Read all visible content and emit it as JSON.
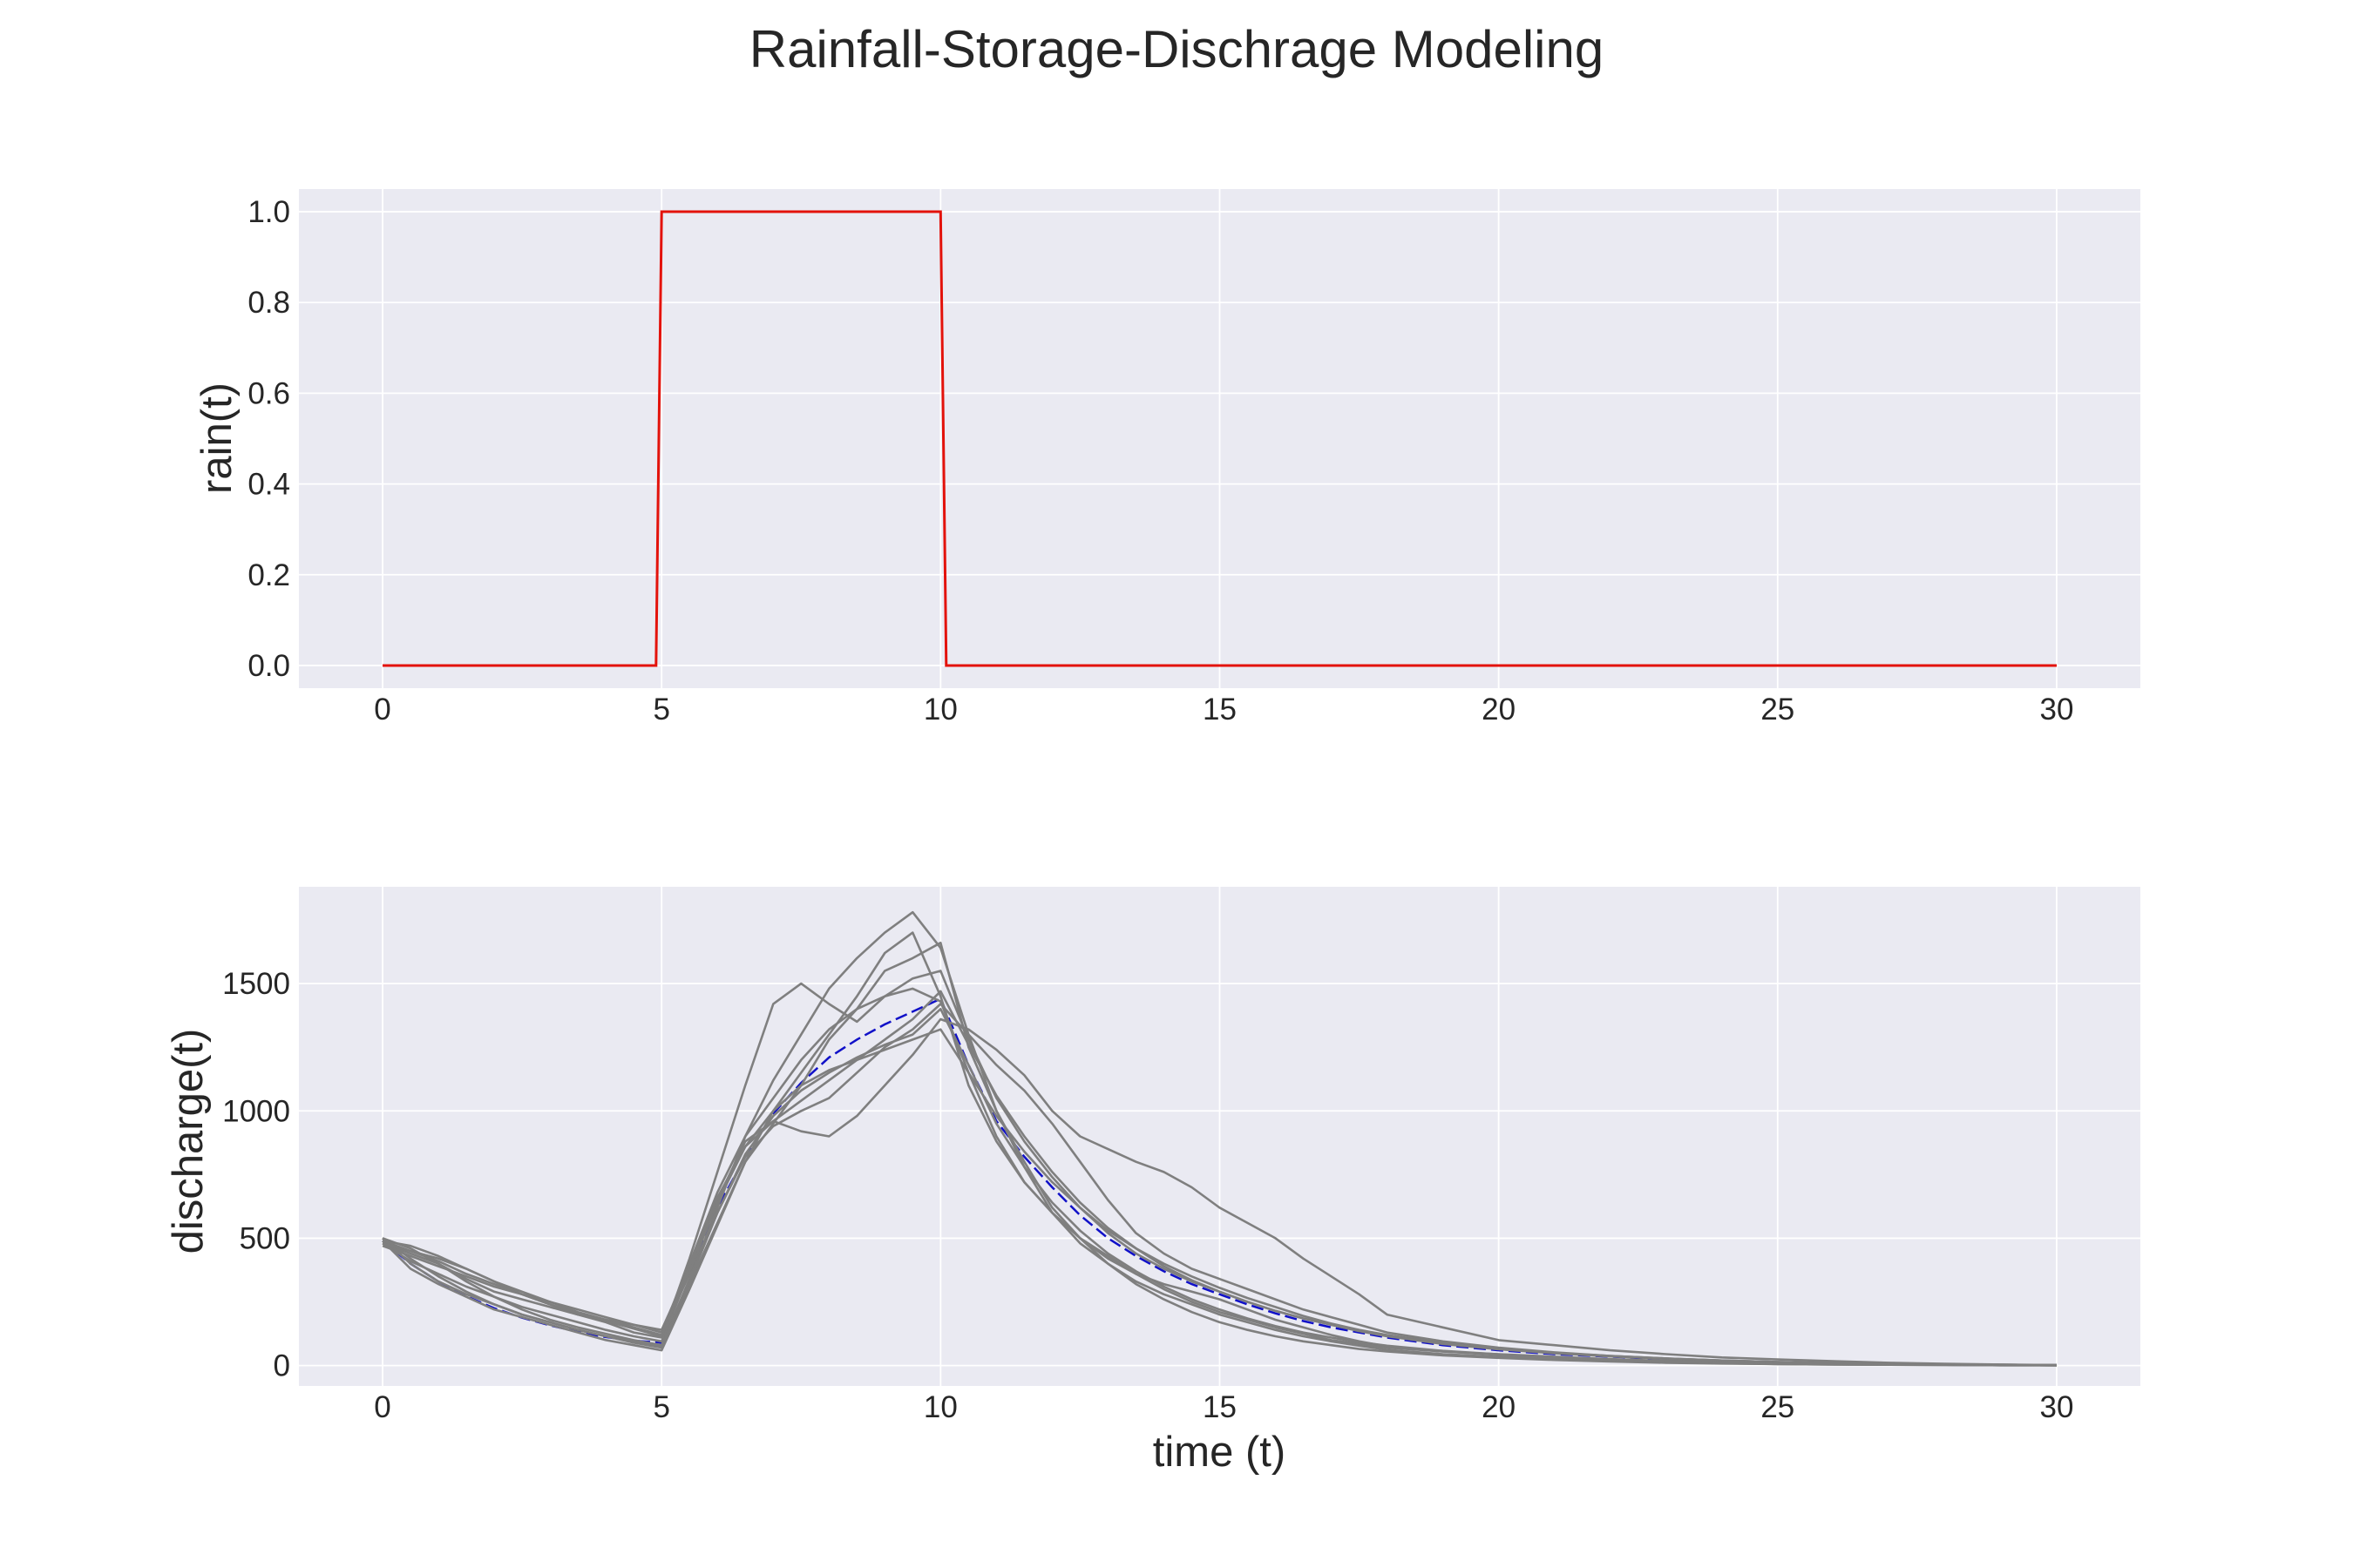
{
  "figure": {
    "title": "Rainfall-Storage-Dischrage Modeling"
  },
  "colors": {
    "background": "#eaeaf2",
    "grid": "#ffffff",
    "rain": "#e3120b",
    "mean_discharge": "#1010c8",
    "realizations": "#7f7f7f",
    "text": "#262626"
  },
  "chart_data": [
    {
      "type": "line",
      "ylabel": "rain(t)",
      "xlabel": "",
      "xlim": [
        -1.5,
        31.5
      ],
      "ylim": [
        -0.05,
        1.05
      ],
      "xticks": [
        0,
        5,
        10,
        15,
        20,
        25,
        30
      ],
      "yticks": [
        "0.0",
        "0.2",
        "0.4",
        "0.6",
        "0.8",
        "1.0"
      ],
      "grid": true,
      "series": [
        {
          "color": "#e3120b",
          "x": [
            0,
            4.9,
            5.0,
            10.0,
            10.1,
            30
          ],
          "y": [
            0,
            0,
            1,
            1,
            0,
            0
          ]
        }
      ]
    },
    {
      "type": "line",
      "ylabel": "discharge(t)",
      "xlabel": "time (t)",
      "xlim": [
        -1.5,
        31.5
      ],
      "ylim": [
        -80,
        1880
      ],
      "xticks": [
        0,
        5,
        10,
        15,
        20,
        25,
        30
      ],
      "yticks": [
        "0",
        "500",
        "1000",
        "1500"
      ],
      "grid": true,
      "mean_series": {
        "color": "#1010c8",
        "dashed": true,
        "x": [
          0,
          0.5,
          1,
          1.5,
          2,
          2.5,
          3,
          3.5,
          4,
          4.5,
          5,
          5.5,
          6,
          6.5,
          7,
          7.5,
          8,
          8.5,
          9,
          9.5,
          10,
          10.5,
          11,
          11.5,
          12,
          12.5,
          13,
          13.5,
          14,
          14.5,
          15,
          15.5,
          16,
          16.5,
          17,
          17.5,
          18,
          19,
          20,
          21,
          22,
          23,
          24,
          25,
          26,
          27,
          28,
          29,
          30
        ],
        "y": [
          490,
          400,
          330,
          272,
          225,
          188,
          158,
          132,
          112,
          98,
          90,
          380,
          620,
          820,
          990,
          1110,
          1210,
          1280,
          1340,
          1390,
          1440,
          1180,
          960,
          820,
          700,
          590,
          500,
          430,
          370,
          320,
          280,
          240,
          205,
          175,
          150,
          130,
          110,
          80,
          60,
          45,
          35,
          25,
          18,
          13,
          9,
          6,
          4,
          3,
          2
        ]
      },
      "realizations": {
        "color": "#7f7f7f",
        "count": 10,
        "x": [
          0,
          0.5,
          1,
          1.5,
          2,
          2.5,
          3,
          3.5,
          4,
          4.5,
          5,
          5.5,
          6,
          6.5,
          7,
          7.5,
          8,
          8.5,
          9,
          9.5,
          10,
          10.5,
          11,
          11.5,
          12,
          12.5,
          13,
          13.5,
          14,
          14.5,
          15,
          15.5,
          16,
          16.5,
          17,
          17.5,
          18,
          19,
          20,
          21,
          22,
          23,
          24,
          25,
          26,
          27,
          28,
          29,
          30
        ],
        "runs": [
          [
            490,
            450,
            420,
            380,
            330,
            280,
            240,
            200,
            170,
            130,
            110,
            420,
            760,
            1100,
            1420,
            1500,
            1420,
            1350,
            1450,
            1480,
            1430,
            1150,
            900,
            720,
            600,
            500,
            430,
            360,
            300,
            250,
            210,
            180,
            150,
            125,
            100,
            85,
            70,
            55,
            45,
            35,
            25,
            18,
            13,
            9,
            6,
            5,
            3,
            2,
            1
          ],
          [
            500,
            420,
            350,
            290,
            240,
            200,
            170,
            140,
            115,
            90,
            70,
            320,
            560,
            800,
            950,
            1100,
            1280,
            1400,
            1550,
            1600,
            1660,
            1250,
            1000,
            800,
            620,
            500,
            400,
            320,
            260,
            210,
            170,
            140,
            115,
            95,
            80,
            65,
            55,
            40,
            30,
            22,
            16,
            11,
            8,
            6,
            4,
            3,
            2,
            1,
            1
          ],
          [
            480,
            440,
            400,
            340,
            290,
            260,
            230,
            200,
            180,
            160,
            140,
            380,
            650,
            880,
            960,
            920,
            900,
            980,
            1100,
            1220,
            1360,
            1320,
            1240,
            1140,
            1000,
            900,
            850,
            800,
            760,
            700,
            620,
            560,
            500,
            420,
            350,
            280,
            200,
            150,
            100,
            80,
            60,
            45,
            32,
            24,
            17,
            11,
            7,
            4,
            2
          ],
          [
            490,
            380,
            320,
            270,
            220,
            190,
            160,
            130,
            100,
            80,
            60,
            300,
            550,
            800,
            1000,
            1150,
            1300,
            1450,
            1620,
            1700,
            1450,
            1100,
            880,
            720,
            600,
            500,
            420,
            360,
            320,
            290,
            260,
            220,
            180,
            150,
            120,
            95,
            75,
            55,
            42,
            32,
            24,
            18,
            13,
            9,
            6,
            4,
            3,
            2,
            1
          ],
          [
            470,
            430,
            390,
            350,
            310,
            280,
            250,
            210,
            180,
            150,
            120,
            360,
            600,
            820,
            940,
            1000,
            1050,
            1150,
            1250,
            1320,
            1420,
            1300,
            1180,
            1080,
            950,
            800,
            650,
            520,
            440,
            380,
            340,
            300,
            260,
            220,
            190,
            160,
            130,
            95,
            70,
            52,
            38,
            28,
            20,
            14,
            10,
            7,
            4,
            3,
            2
          ],
          [
            500,
            460,
            400,
            330,
            270,
            220,
            180,
            150,
            125,
            100,
            80,
            340,
            620,
            900,
            1120,
            1300,
            1480,
            1600,
            1700,
            1780,
            1640,
            1300,
            1000,
            780,
            600,
            480,
            400,
            330,
            280,
            240,
            200,
            170,
            140,
            115,
            95,
            78,
            62,
            45,
            34,
            25,
            18,
            13,
            9,
            6,
            4,
            3,
            2,
            1,
            1
          ],
          [
            480,
            410,
            360,
            310,
            270,
            230,
            200,
            170,
            140,
            115,
            95,
            370,
            640,
            860,
            1000,
            1100,
            1160,
            1200,
            1240,
            1280,
            1320,
            1150,
            980,
            840,
            720,
            620,
            530,
            460,
            400,
            350,
            305,
            265,
            230,
            195,
            165,
            140,
            120,
            90,
            68,
            50,
            37,
            27,
            19,
            13,
            9,
            6,
            4,
            2,
            1
          ],
          [
            490,
            470,
            430,
            380,
            330,
            290,
            250,
            220,
            190,
            160,
            130,
            400,
            680,
            900,
            1050,
            1200,
            1320,
            1400,
            1450,
            1520,
            1550,
            1280,
            1050,
            880,
            740,
            620,
            520,
            440,
            380,
            330,
            290,
            250,
            215,
            185,
            160,
            135,
            115,
            85,
            64,
            48,
            36,
            27,
            20,
            14,
            10,
            7,
            5,
            3,
            2
          ],
          [
            500,
            400,
            330,
            280,
            240,
            200,
            170,
            140,
            115,
            95,
            75,
            330,
            600,
            830,
            980,
            1080,
            1150,
            1210,
            1260,
            1300,
            1400,
            1180,
            950,
            780,
            640,
            530,
            440,
            370,
            310,
            260,
            220,
            185,
            155,
            130,
            110,
            92,
            78,
            58,
            44,
            33,
            25,
            18,
            13,
            9,
            6,
            4,
            3,
            2,
            1
          ],
          [
            480,
            450,
            410,
            360,
            320,
            280,
            240,
            205,
            175,
            145,
            115,
            390,
            660,
            860,
            960,
            1040,
            1120,
            1200,
            1280,
            1360,
            1470,
            1260,
            1060,
            900,
            760,
            640,
            540,
            460,
            390,
            335,
            290,
            250,
            215,
            185,
            160,
            138,
            118,
            88,
            66,
            50,
            38,
            28,
            20,
            14,
            10,
            7,
            5,
            3,
            2
          ]
        ]
      }
    }
  ]
}
